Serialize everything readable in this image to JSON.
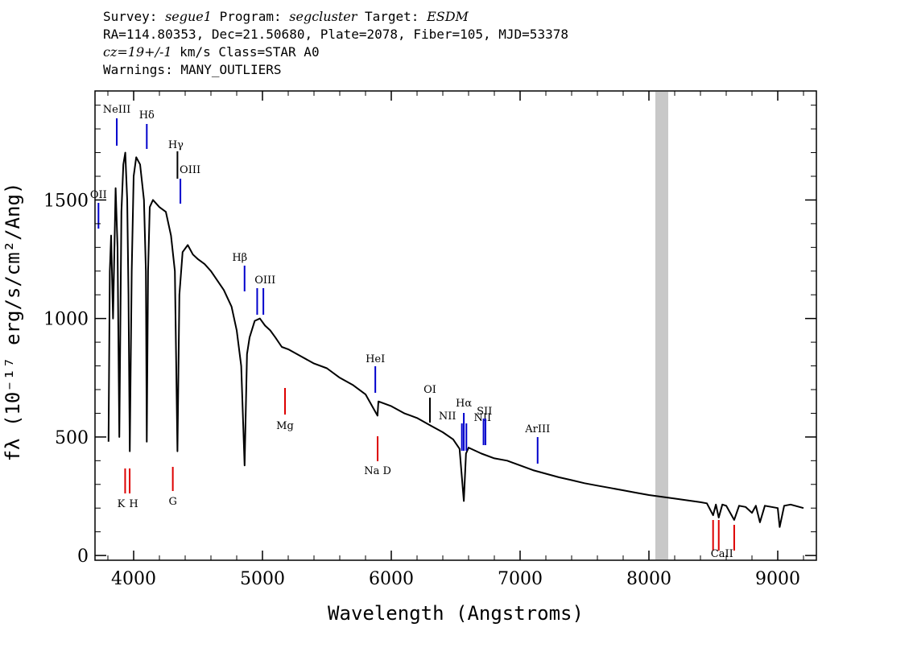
{
  "header": {
    "line1": {
      "survey_label": "Survey:",
      "survey": "segue1",
      "program_label": "Program:",
      "program": "segcluster",
      "target_label": "Target:",
      "target": "ESDM"
    },
    "line2": "RA=114.80353, Dec=21.50680, Plate=2078, Fiber=105, MJD=53378",
    "line3": {
      "cz": "cz=19+/-1",
      "rest": " km/s Class=STAR A0"
    },
    "line4": "Warnings: MANY_OUTLIERS"
  },
  "chart_data": {
    "type": "line",
    "xlabel": "Wavelength (Angstroms)",
    "ylabel": "fλ (10⁻¹⁷ erg/s/cm²/Ang)",
    "xlim": [
      3700,
      9300
    ],
    "ylim": [
      -20,
      1960
    ],
    "x_ticks": [
      4000,
      5000,
      6000,
      7000,
      8000,
      9000
    ],
    "y_ticks": [
      0,
      500,
      1000,
      1500
    ],
    "masked_band": [
      8050,
      8150
    ],
    "series": [
      {
        "points": [
          [
            3805,
            480
          ],
          [
            3815,
            1200
          ],
          [
            3825,
            1350
          ],
          [
            3840,
            1000
          ],
          [
            3860,
            1550
          ],
          [
            3875,
            1300
          ],
          [
            3889,
            500
          ],
          [
            3905,
            1450
          ],
          [
            3920,
            1650
          ],
          [
            3935,
            1700
          ],
          [
            3950,
            1500
          ],
          [
            3960,
            1100
          ],
          [
            3970,
            440
          ],
          [
            3985,
            1200
          ],
          [
            4000,
            1600
          ],
          [
            4020,
            1680
          ],
          [
            4050,
            1650
          ],
          [
            4080,
            1500
          ],
          [
            4095,
            1200
          ],
          [
            4102,
            480
          ],
          [
            4112,
            1200
          ],
          [
            4125,
            1470
          ],
          [
            4150,
            1500
          ],
          [
            4200,
            1470
          ],
          [
            4250,
            1450
          ],
          [
            4290,
            1350
          ],
          [
            4320,
            1200
          ],
          [
            4340,
            440
          ],
          [
            4355,
            1100
          ],
          [
            4380,
            1280
          ],
          [
            4420,
            1310
          ],
          [
            4460,
            1270
          ],
          [
            4500,
            1250
          ],
          [
            4550,
            1230
          ],
          [
            4600,
            1200
          ],
          [
            4650,
            1160
          ],
          [
            4700,
            1120
          ],
          [
            4760,
            1050
          ],
          [
            4800,
            950
          ],
          [
            4835,
            800
          ],
          [
            4861,
            380
          ],
          [
            4880,
            850
          ],
          [
            4900,
            920
          ],
          [
            4940,
            990
          ],
          [
            4980,
            1000
          ],
          [
            5020,
            970
          ],
          [
            5060,
            950
          ],
          [
            5100,
            920
          ],
          [
            5150,
            880
          ],
          [
            5200,
            870
          ],
          [
            5300,
            840
          ],
          [
            5400,
            810
          ],
          [
            5500,
            790
          ],
          [
            5600,
            750
          ],
          [
            5700,
            720
          ],
          [
            5800,
            680
          ],
          [
            5893,
            590
          ],
          [
            5900,
            650
          ],
          [
            6000,
            630
          ],
          [
            6100,
            600
          ],
          [
            6200,
            580
          ],
          [
            6300,
            550
          ],
          [
            6400,
            520
          ],
          [
            6480,
            490
          ],
          [
            6530,
            450
          ],
          [
            6563,
            230
          ],
          [
            6580,
            430
          ],
          [
            6600,
            455
          ],
          [
            6700,
            430
          ],
          [
            6800,
            410
          ],
          [
            6900,
            400
          ],
          [
            7000,
            380
          ],
          [
            7100,
            360
          ],
          [
            7200,
            345
          ],
          [
            7300,
            330
          ],
          [
            7400,
            318
          ],
          [
            7500,
            305
          ],
          [
            7600,
            295
          ],
          [
            7700,
            285
          ],
          [
            7800,
            275
          ],
          [
            7900,
            265
          ],
          [
            8000,
            255
          ],
          [
            8200,
            240
          ],
          [
            8400,
            225
          ],
          [
            8450,
            220
          ],
          [
            8498,
            170
          ],
          [
            8520,
            215
          ],
          [
            8542,
            160
          ],
          [
            8570,
            215
          ],
          [
            8600,
            210
          ],
          [
            8662,
            150
          ],
          [
            8700,
            210
          ],
          [
            8750,
            205
          ],
          [
            8800,
            180
          ],
          [
            8830,
            210
          ],
          [
            8862,
            140
          ],
          [
            8900,
            210
          ],
          [
            9000,
            200
          ],
          [
            9015,
            120
          ],
          [
            9050,
            210
          ],
          [
            9100,
            215
          ],
          [
            9200,
            200
          ]
        ]
      }
    ],
    "line_markers": [
      {
        "label": "OII",
        "wavelength": 3727,
        "type": "emission"
      },
      {
        "label": "NeIII",
        "wavelength": 3869,
        "type": "emission"
      },
      {
        "label": "Hδ",
        "wavelength": 4102,
        "type": "emission"
      },
      {
        "label": "Hγ",
        "wavelength": 4340,
        "type": "neutral"
      },
      {
        "label": "OIII",
        "wavelength": 4363,
        "type": "emission"
      },
      {
        "label": "Hβ",
        "wavelength": 4861,
        "type": "emission"
      },
      {
        "label": "OIII",
        "wavelengths": [
          4959,
          5007
        ],
        "type": "emission"
      },
      {
        "label": "HeI",
        "wavelength": 5876,
        "type": "emission"
      },
      {
        "label": "OI",
        "wavelength": 6300,
        "type": "neutral"
      },
      {
        "label": "NII",
        "wavelength": 6548,
        "type": "emission"
      },
      {
        "label": "Hα",
        "wavelength": 6563,
        "type": "emission"
      },
      {
        "label": "NII",
        "wavelength": 6583,
        "type": "emission"
      },
      {
        "label": "SII",
        "wavelengths": [
          6716,
          6731
        ],
        "type": "emission"
      },
      {
        "label": "ArIII",
        "wavelength": 7136,
        "type": "emission"
      },
      {
        "label": "K",
        "wavelength": 3934,
        "type": "absorption"
      },
      {
        "label": "H",
        "wavelength": 3969,
        "type": "absorption"
      },
      {
        "label": "G",
        "wavelength": 4304,
        "type": "absorption"
      },
      {
        "label": "Mg",
        "wavelength": 5175,
        "type": "absorption"
      },
      {
        "label": "Na D",
        "wavelength": 5894,
        "type": "absorption"
      },
      {
        "label": "CaII",
        "wavelengths": [
          8498,
          8542,
          8662
        ],
        "type": "absorption"
      }
    ]
  },
  "colors": {
    "emission": "#0000cc",
    "absorption": "#dd0000",
    "neutral": "#000000",
    "mask": "#c8c8c8"
  }
}
